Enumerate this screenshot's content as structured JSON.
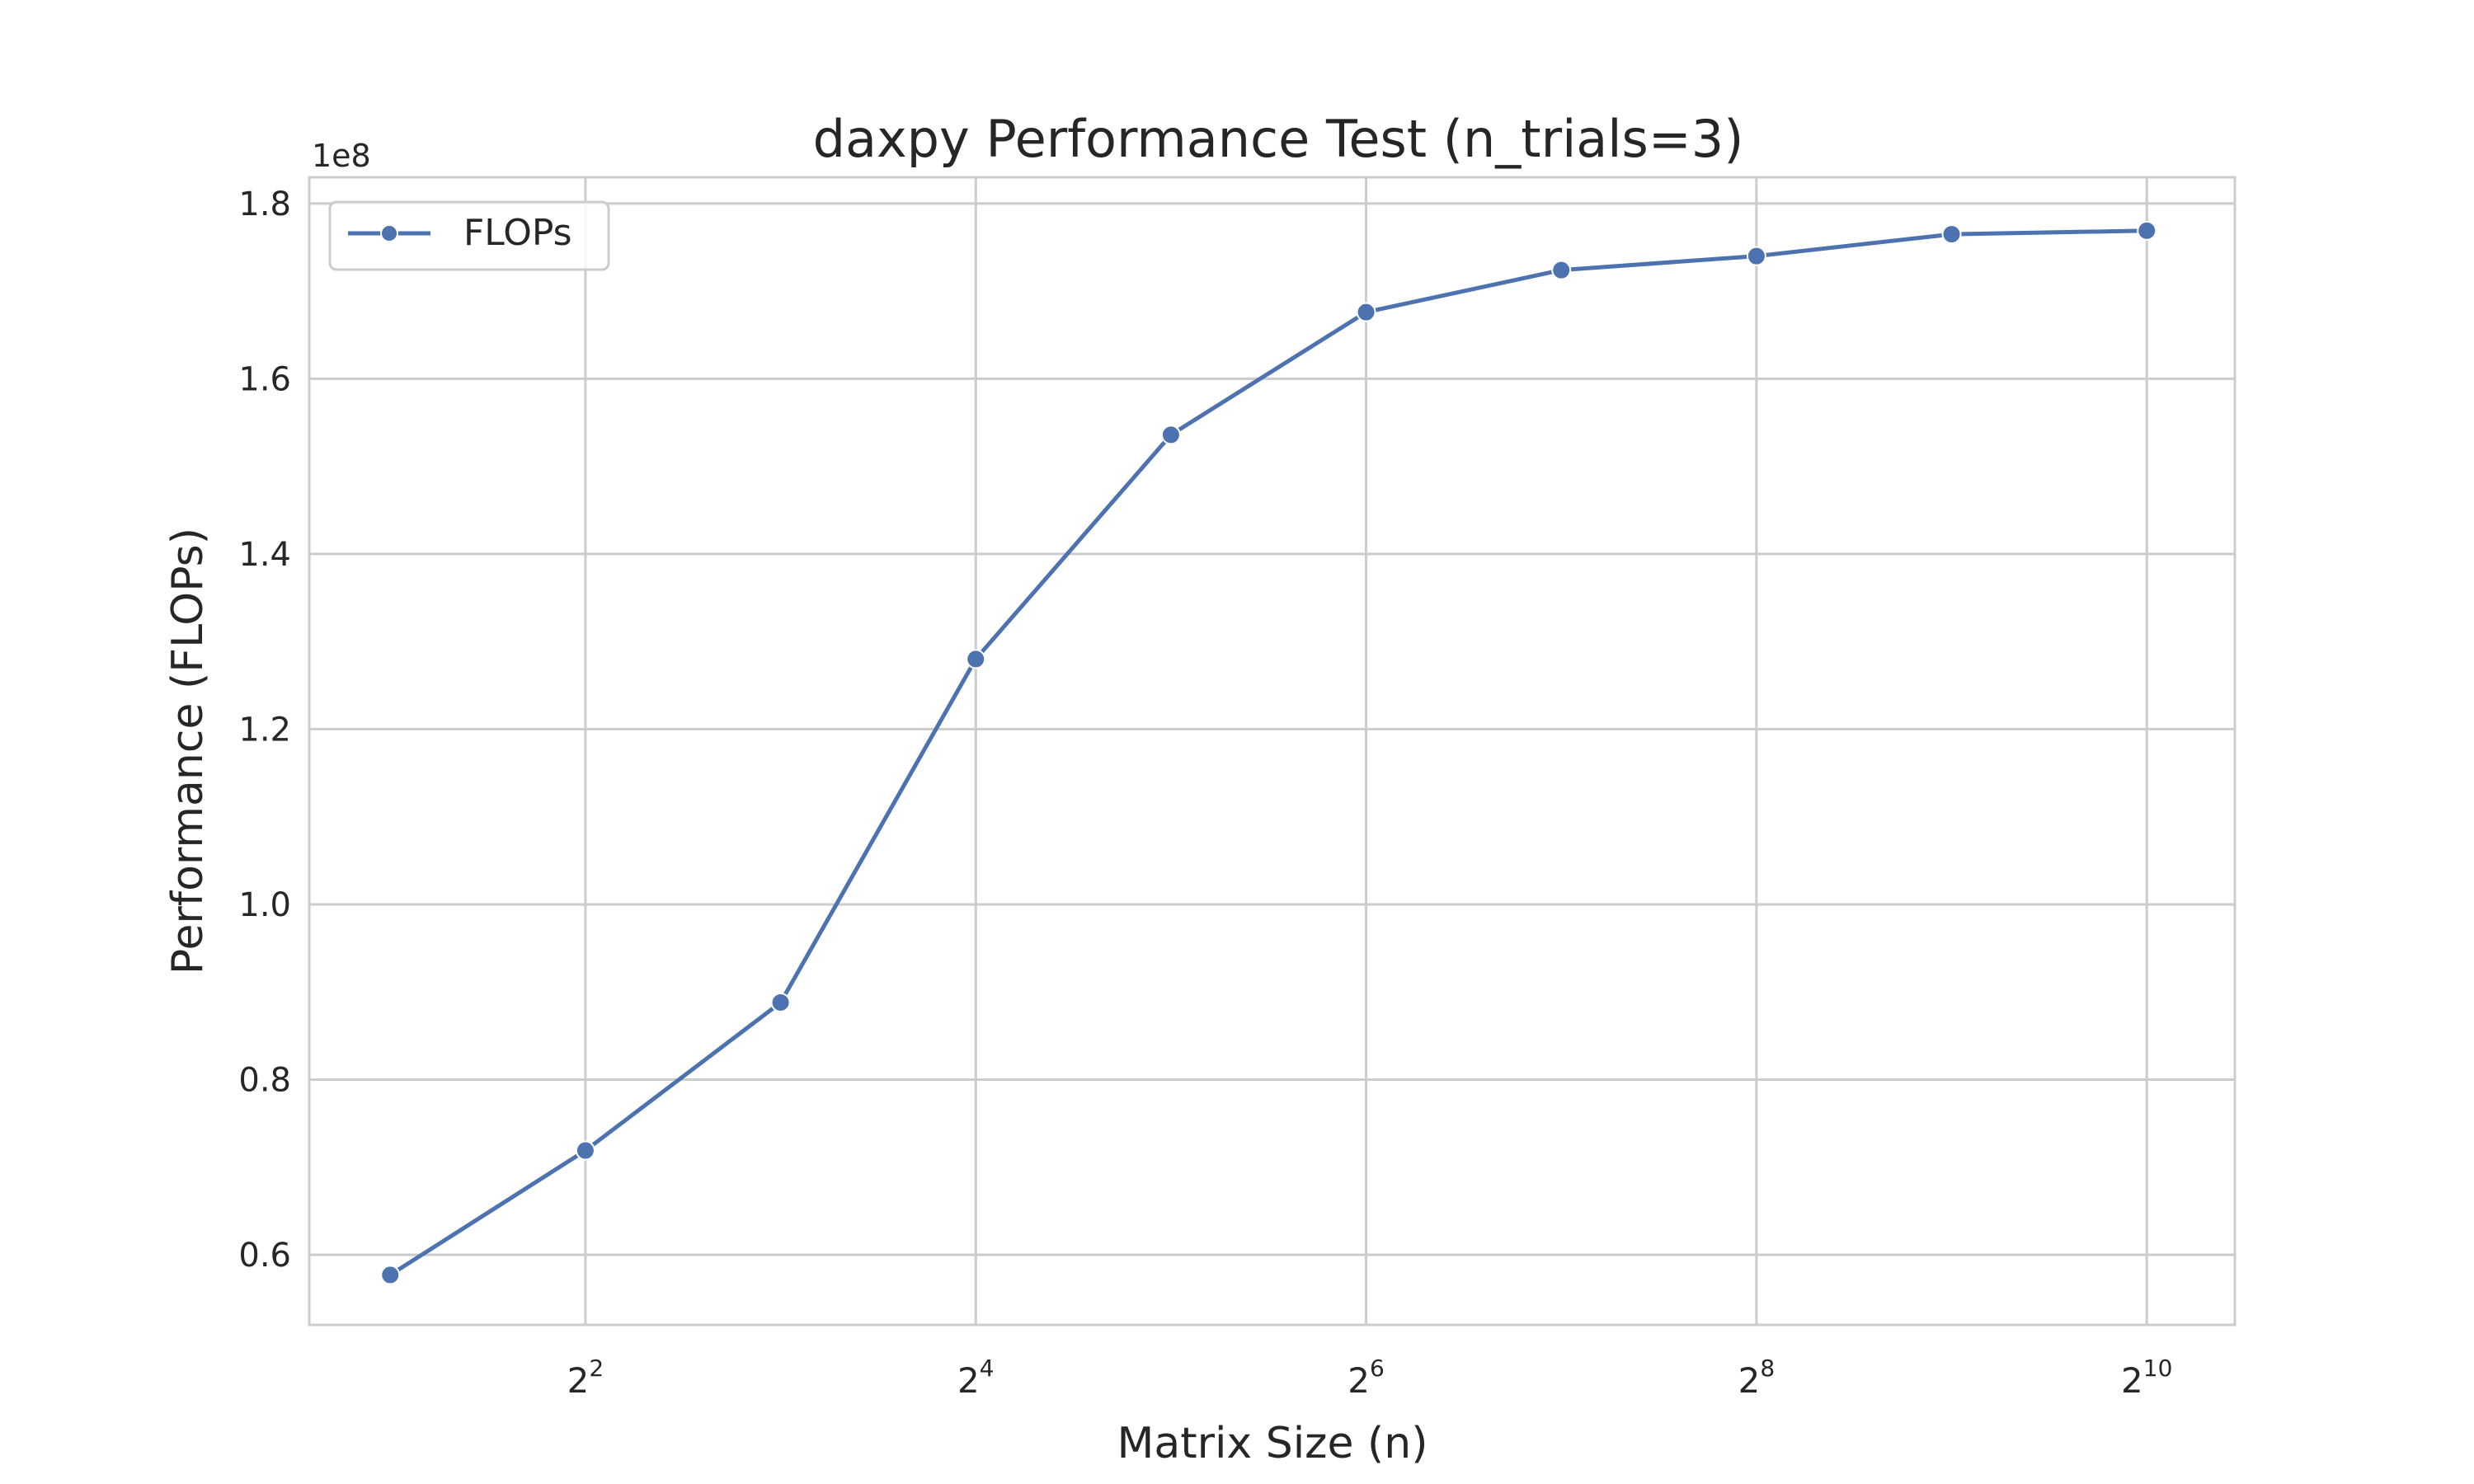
{
  "chart_data": {
    "type": "line",
    "title": "daxpy Performance Test (n_trials=3)",
    "xlabel": "Matrix Size (n)",
    "ylabel": "Performance (FLOPs)",
    "y_offset_label": "1e8",
    "x_scale": "log2",
    "xlim": [
      1.5,
      1400
    ],
    "ylim": [
      52000000,
      183000000
    ],
    "x_ticks": [
      {
        "value": 4,
        "base": "2",
        "exp": "2"
      },
      {
        "value": 16,
        "base": "2",
        "exp": "4"
      },
      {
        "value": 64,
        "base": "2",
        "exp": "6"
      },
      {
        "value": 256,
        "base": "2",
        "exp": "8"
      },
      {
        "value": 1024,
        "base": "2",
        "exp": "10"
      }
    ],
    "y_ticks": [
      {
        "value": 60000000,
        "label": "0.6"
      },
      {
        "value": 80000000,
        "label": "0.8"
      },
      {
        "value": 100000000,
        "label": "1.0"
      },
      {
        "value": 120000000,
        "label": "1.2"
      },
      {
        "value": 140000000,
        "label": "1.4"
      },
      {
        "value": 160000000,
        "label": "1.6"
      },
      {
        "value": 180000000,
        "label": "1.8"
      }
    ],
    "grid": true,
    "legend_position": "top-left",
    "series": [
      {
        "name": "FLOPs",
        "color": "#4c72b0",
        "x": [
          2,
          4,
          8,
          16,
          32,
          64,
          128,
          256,
          512,
          1024
        ],
        "y": [
          57700000,
          71900000,
          88800000,
          128000000,
          153600000,
          167600000,
          172400000,
          174000000,
          176500000,
          176900000
        ]
      }
    ]
  }
}
